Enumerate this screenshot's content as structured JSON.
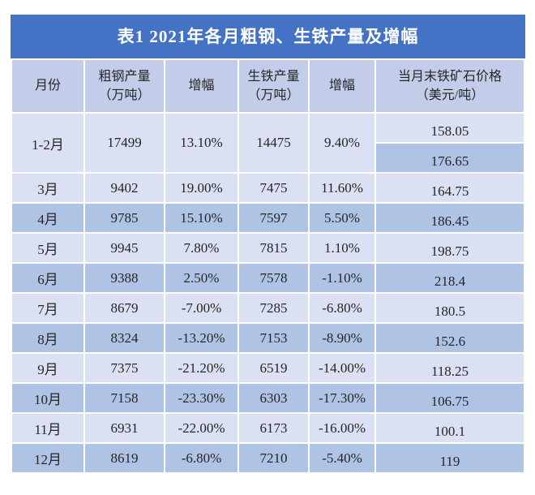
{
  "table": {
    "title": "表1 2021年各月粗钢、生铁产量及增幅",
    "columns": [
      {
        "label": "月份",
        "sub": ""
      },
      {
        "label": "粗钢产量",
        "sub": "（万吨）"
      },
      {
        "label": "增幅",
        "sub": ""
      },
      {
        "label": "生铁产量",
        "sub": "（万吨）"
      },
      {
        "label": "增幅",
        "sub": ""
      },
      {
        "label": "当月末铁矿石价格",
        "sub": "（美元/吨）"
      }
    ],
    "rows": [
      {
        "month": "1-2月",
        "crude_steel": "17499",
        "crude_growth": "13.10%",
        "pig_iron": "14475",
        "pig_growth": "9.40%",
        "prices": [
          "158.05",
          "176.65"
        ]
      },
      {
        "month": "3月",
        "crude_steel": "9402",
        "crude_growth": "19.00%",
        "pig_iron": "7475",
        "pig_growth": "11.60%",
        "prices": [
          "164.75"
        ]
      },
      {
        "month": "4月",
        "crude_steel": "9785",
        "crude_growth": "15.10%",
        "pig_iron": "7597",
        "pig_growth": "5.50%",
        "prices": [
          "186.45"
        ]
      },
      {
        "month": "5月",
        "crude_steel": "9945",
        "crude_growth": "7.80%",
        "pig_iron": "7815",
        "pig_growth": "1.10%",
        "prices": [
          "198.75"
        ]
      },
      {
        "month": "6月",
        "crude_steel": "9388",
        "crude_growth": "2.50%",
        "pig_iron": "7578",
        "pig_growth": "-1.10%",
        "prices": [
          "218.4"
        ]
      },
      {
        "month": "7月",
        "crude_steel": "8679",
        "crude_growth": "-7.00%",
        "pig_iron": "7285",
        "pig_growth": "-6.80%",
        "prices": [
          "180.5"
        ]
      },
      {
        "month": "8月",
        "crude_steel": "8324",
        "crude_growth": "-13.20%",
        "pig_iron": "7153",
        "pig_growth": "-8.90%",
        "prices": [
          "152.6"
        ]
      },
      {
        "month": "9月",
        "crude_steel": "7375",
        "crude_growth": "-21.20%",
        "pig_iron": "6519",
        "pig_growth": "-14.00%",
        "prices": [
          "118.25"
        ]
      },
      {
        "month": "10月",
        "crude_steel": "7158",
        "crude_growth": "-23.30%",
        "pig_iron": "6303",
        "pig_growth": "-17.30%",
        "prices": [
          "106.75"
        ]
      },
      {
        "month": "11月",
        "crude_steel": "6931",
        "crude_growth": "-22.00%",
        "pig_iron": "6173",
        "pig_growth": "-16.00%",
        "prices": [
          "100.1"
        ]
      },
      {
        "month": "12月",
        "crude_steel": "8619",
        "crude_growth": "-6.80%",
        "pig_iron": "7210",
        "pig_growth": "-5.40%",
        "prices": [
          "119"
        ]
      }
    ]
  },
  "colors": {
    "title_bar": "#4472C4",
    "title_text": "#FFFFFF",
    "header_bg": "#C3CDE9",
    "row_light": "#DBE1F2",
    "row_dark": "#AFC3E5",
    "text": "#262626"
  }
}
